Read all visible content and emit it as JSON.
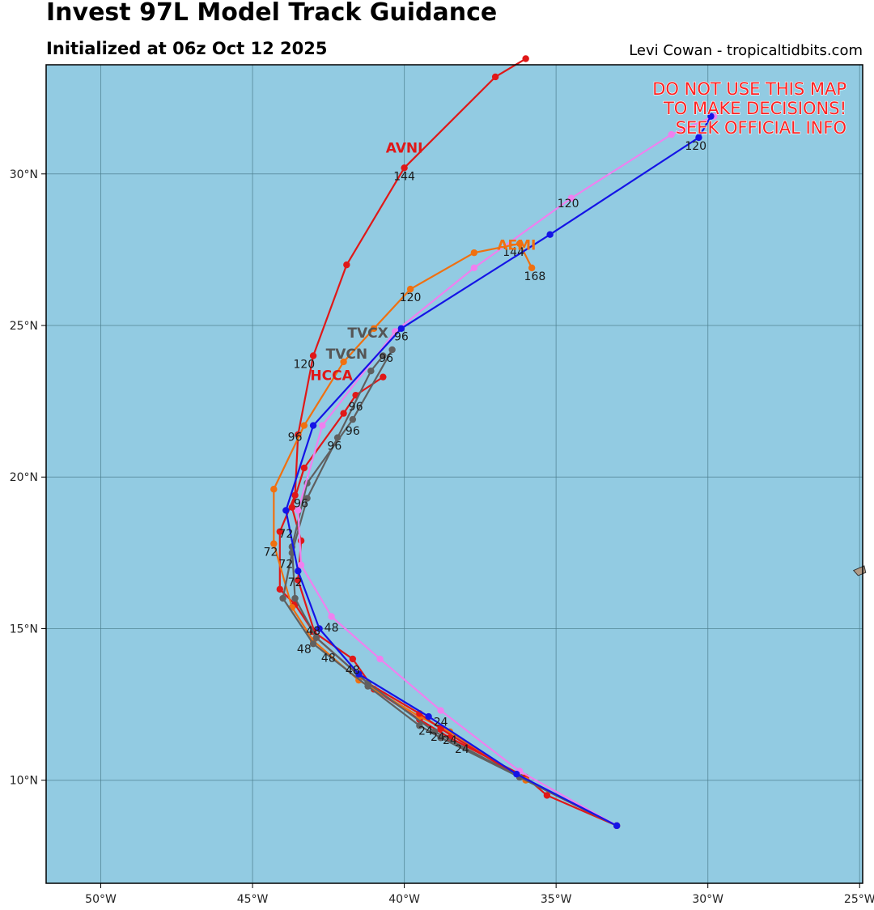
{
  "header": {
    "title": "Invest 97L Model Track Guidance",
    "subtitle": "Initialized at 06z Oct 12 2025",
    "credit": "Levi Cowan - tropicaltidbits.com"
  },
  "warning": [
    "DO NOT USE THIS MAP",
    "TO MAKE DECISIONS!",
    "SEEK OFFICIAL INFO"
  ],
  "colors": {
    "ocean": "#92cbe2",
    "grid": "#4d7f8f",
    "land": "#b09a86"
  },
  "chart_data": {
    "type": "map-tracks",
    "lon_range": [
      -51.8,
      -24.9
    ],
    "lat_range": [
      6.6,
      33.6
    ],
    "x_ticks": [
      {
        "lon": -50,
        "label": "50°W"
      },
      {
        "lon": -45,
        "label": "45°W"
      },
      {
        "lon": -40,
        "label": "40°W"
      },
      {
        "lon": -35,
        "label": "35°W"
      },
      {
        "lon": -30,
        "label": "30°W"
      },
      {
        "lon": -25,
        "label": "25°W"
      }
    ],
    "y_ticks": [
      {
        "lat": 10,
        "label": "10°N"
      },
      {
        "lat": 15,
        "label": "15°N"
      },
      {
        "lat": 20,
        "label": "20°N"
      },
      {
        "lat": 25,
        "label": "25°N"
      },
      {
        "lat": 30,
        "label": "30°N"
      }
    ],
    "land": [
      {
        "name": "Cape Verde islands",
        "points": [
          [
            -25.2,
            16.92
          ],
          [
            -24.85,
            17.07
          ],
          [
            -24.8,
            16.85
          ],
          [
            -25.05,
            16.75
          ],
          [
            -25.2,
            16.92
          ]
        ]
      }
    ],
    "tracks": [
      {
        "name": "AVNI",
        "color": "#e01818",
        "points": [
          [
            -33.0,
            8.5
          ],
          [
            -35.3,
            9.5
          ],
          [
            -36.0,
            10.1
          ],
          [
            -38.5,
            11.4
          ],
          [
            -39.5,
            12.0
          ],
          [
            -41.0,
            13.0
          ],
          [
            -41.7,
            14.0
          ],
          [
            -43.0,
            14.9
          ],
          [
            -43.6,
            15.8
          ],
          [
            -44.1,
            16.3
          ],
          [
            -44.1,
            18.2
          ],
          [
            -43.6,
            19.4
          ],
          [
            -43.5,
            21.4
          ],
          [
            -43.0,
            24.0
          ],
          [
            -41.9,
            27.0
          ],
          [
            -40.0,
            30.2
          ],
          [
            -37.0,
            33.2
          ],
          [
            -36.0,
            33.8
          ]
        ]
      },
      {
        "name": "AEMI",
        "color": "#f07010",
        "points": [
          [
            -33.0,
            8.5
          ],
          [
            -36.0,
            10.0
          ],
          [
            -38.5,
            11.6
          ],
          [
            -39.5,
            12.1
          ],
          [
            -41.5,
            13.3
          ],
          [
            -43.0,
            14.6
          ],
          [
            -43.7,
            15.7
          ],
          [
            -44.3,
            17.8
          ],
          [
            -44.3,
            19.6
          ],
          [
            -43.3,
            21.7
          ],
          [
            -42.0,
            23.8
          ],
          [
            -41.0,
            24.9
          ],
          [
            -39.8,
            26.2
          ],
          [
            -37.7,
            27.4
          ],
          [
            -36.2,
            27.7
          ],
          [
            -35.8,
            26.9
          ]
        ]
      },
      {
        "name": "HCCA",
        "color": "#e01818",
        "points": [
          [
            -33.0,
            8.5
          ],
          [
            -36.2,
            10.1
          ],
          [
            -38.8,
            11.7
          ],
          [
            -39.5,
            12.2
          ],
          [
            -41.2,
            13.2
          ],
          [
            -42.9,
            14.7
          ],
          [
            -43.5,
            16.6
          ],
          [
            -43.4,
            17.9
          ],
          [
            -43.7,
            19.0
          ],
          [
            -43.3,
            20.3
          ],
          [
            -42.0,
            22.1
          ],
          [
            -41.6,
            22.7
          ],
          [
            -40.7,
            23.3
          ]
        ]
      },
      {
        "name": "TVCN",
        "color": "#606060",
        "points": [
          [
            -33.0,
            8.5
          ],
          [
            -36.2,
            10.1
          ],
          [
            -38.8,
            11.4
          ],
          [
            -39.5,
            11.8
          ],
          [
            -41.2,
            13.1
          ],
          [
            -43.0,
            14.5
          ],
          [
            -44.0,
            16.0
          ],
          [
            -43.7,
            17.5
          ],
          [
            -43.2,
            19.3
          ],
          [
            -42.2,
            21.3
          ],
          [
            -41.1,
            23.5
          ],
          [
            -40.7,
            24.0
          ]
        ]
      },
      {
        "name": "TVCX",
        "color": "#606060",
        "points": [
          [
            -33.0,
            8.5
          ],
          [
            -36.2,
            10.1
          ],
          [
            -39.0,
            11.6
          ],
          [
            -41.2,
            13.2
          ],
          [
            -42.9,
            14.7
          ],
          [
            -43.6,
            16.0
          ],
          [
            -43.7,
            17.7
          ],
          [
            -43.2,
            19.8
          ],
          [
            -41.7,
            21.9
          ],
          [
            -40.4,
            24.2
          ]
        ]
      },
      {
        "name": "pink",
        "color": "#ef80ef",
        "points": [
          [
            -33.0,
            8.5
          ],
          [
            -36.2,
            10.3
          ],
          [
            -38.8,
            12.3
          ],
          [
            -40.8,
            14.0
          ],
          [
            -42.4,
            15.4
          ],
          [
            -43.4,
            17.1
          ],
          [
            -43.5,
            18.9
          ],
          [
            -42.7,
            21.7
          ],
          [
            -40.3,
            24.8
          ],
          [
            -37.7,
            26.9
          ],
          [
            -34.5,
            29.2
          ],
          [
            -31.2,
            31.3
          ],
          [
            -29.8,
            31.9
          ]
        ]
      },
      {
        "name": "blue",
        "color": "#1414e6",
        "points": [
          [
            -33.0,
            8.5
          ],
          [
            -36.3,
            10.2
          ],
          [
            -39.2,
            12.1
          ],
          [
            -41.5,
            13.5
          ],
          [
            -42.8,
            15.0
          ],
          [
            -43.5,
            16.9
          ],
          [
            -43.9,
            18.9
          ],
          [
            -43.0,
            21.7
          ],
          [
            -40.1,
            24.9
          ],
          [
            -35.2,
            28.0
          ],
          [
            -30.3,
            31.2
          ],
          [
            -29.9,
            31.9
          ]
        ]
      }
    ],
    "hour_labels": [
      {
        "text": "144",
        "lon": -40.0,
        "lat": 29.8
      },
      {
        "text": "120",
        "lon": -43.3,
        "lat": 23.6
      },
      {
        "text": "96",
        "lon": -43.6,
        "lat": 21.2
      },
      {
        "text": "72",
        "lon": -43.9,
        "lat": 18.0
      },
      {
        "text": "48",
        "lon": -43.0,
        "lat": 14.8
      },
      {
        "text": "24",
        "lon": -38.1,
        "lat": 10.9
      },
      {
        "text": "144",
        "lon": -36.4,
        "lat": 27.3
      },
      {
        "text": "168",
        "lon": -35.7,
        "lat": 26.5
      },
      {
        "text": "120",
        "lon": -39.8,
        "lat": 25.8
      },
      {
        "text": "72",
        "lon": -44.4,
        "lat": 17.4
      },
      {
        "text": "96",
        "lon": -41.6,
        "lat": 22.2
      },
      {
        "text": "96",
        "lon": -41.7,
        "lat": 21.4
      },
      {
        "text": "96",
        "lon": -42.3,
        "lat": 20.9
      },
      {
        "text": "96",
        "lon": -40.6,
        "lat": 23.8
      },
      {
        "text": "96",
        "lon": -40.1,
        "lat": 24.5
      },
      {
        "text": "96",
        "lon": -43.4,
        "lat": 19.0
      },
      {
        "text": "72",
        "lon": -43.9,
        "lat": 17.0
      },
      {
        "text": "72",
        "lon": -43.6,
        "lat": 16.4
      },
      {
        "text": "48",
        "lon": -42.4,
        "lat": 14.9
      },
      {
        "text": "48",
        "lon": -43.3,
        "lat": 14.2
      },
      {
        "text": "48",
        "lon": -42.5,
        "lat": 13.9
      },
      {
        "text": "48",
        "lon": -41.7,
        "lat": 13.5
      },
      {
        "text": "24",
        "lon": -38.8,
        "lat": 11.8
      },
      {
        "text": "24",
        "lon": -39.3,
        "lat": 11.5
      },
      {
        "text": "24",
        "lon": -38.9,
        "lat": 11.3
      },
      {
        "text": "24",
        "lon": -38.5,
        "lat": 11.2
      },
      {
        "text": "120",
        "lon": -34.6,
        "lat": 28.9
      },
      {
        "text": "120",
        "lon": -30.4,
        "lat": 30.8
      }
    ],
    "model_labels": [
      {
        "text": "AVNI",
        "lon": -40.0,
        "lat": 30.7,
        "color": "#e01818"
      },
      {
        "text": "AEMI",
        "lon": -36.3,
        "lat": 27.5,
        "color": "#f07010"
      },
      {
        "text": "HCCA",
        "lon": -42.4,
        "lat": 23.2,
        "color": "#e01818"
      },
      {
        "text": "TVCN",
        "lon": -41.9,
        "lat": 23.9,
        "color": "#555555"
      },
      {
        "text": "TVCX",
        "lon": -41.2,
        "lat": 24.6,
        "color": "#555555"
      }
    ]
  }
}
